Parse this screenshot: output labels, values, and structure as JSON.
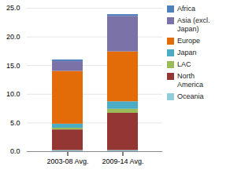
{
  "chart_data": {
    "type": "bar",
    "stacked": true,
    "categories": [
      "2003-08 Avg.",
      "2009-14 Avg."
    ],
    "series": [
      {
        "name": "Oceania",
        "color": "#92CDDC",
        "values": [
          0.2,
          0.2
        ]
      },
      {
        "name": "North\nAmerica",
        "color": "#943634",
        "values": [
          3.6,
          6.5
        ]
      },
      {
        "name": "LAC",
        "color": "#9BBB59",
        "values": [
          0.3,
          0.7
        ]
      },
      {
        "name": "Japan",
        "color": "#4BACC6",
        "values": [
          0.7,
          1.3
        ]
      },
      {
        "name": "Europe",
        "color": "#E36C09",
        "values": [
          9.2,
          8.7
        ]
      },
      {
        "name": "Asia (excl.\nJapan)",
        "color": "#7B72A8",
        "values": [
          1.7,
          6.2
        ]
      },
      {
        "name": "Africa",
        "color": "#4F81BD",
        "values": [
          0.3,
          0.3
        ]
      }
    ],
    "ylim": [
      0,
      25.0
    ],
    "yticks": [
      {
        "value": 0,
        "label": "0.0"
      },
      {
        "value": 5,
        "label": "5.0"
      },
      {
        "value": 10,
        "label": "10.0"
      },
      {
        "value": 15,
        "label": "15.0"
      },
      {
        "value": 20,
        "label": "20.0"
      },
      {
        "value": 25,
        "label": "25.0"
      }
    ],
    "grid": true,
    "legend": "right"
  }
}
